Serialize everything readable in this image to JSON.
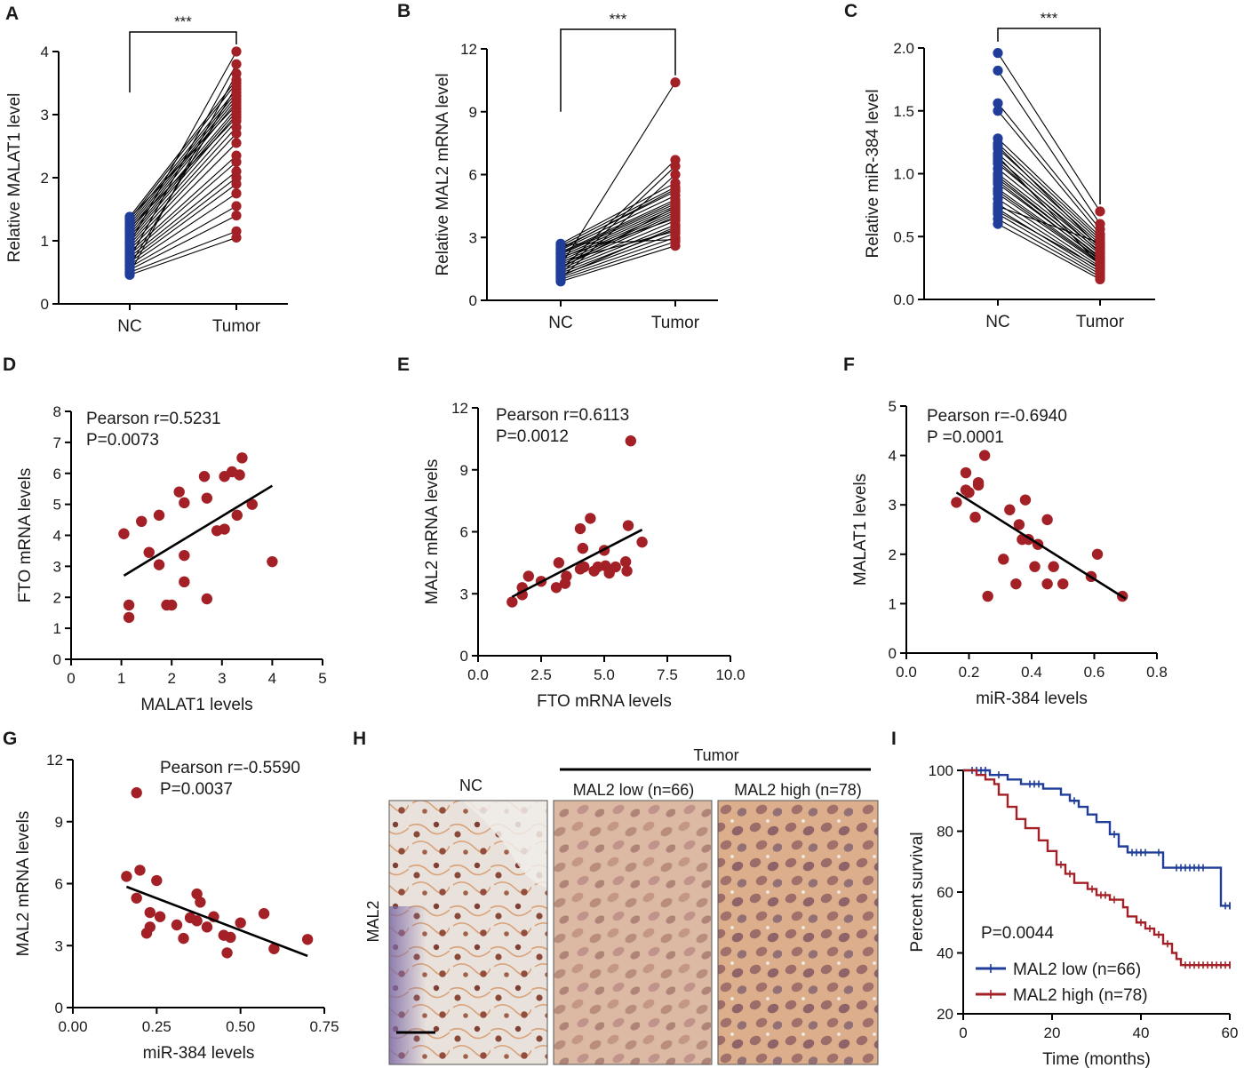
{
  "colors": {
    "blue": "#1f3d99",
    "red": "#a32126",
    "line": "#000000"
  },
  "histology": {
    "tumor_label": "Tumor",
    "nc_label": "NC",
    "low_label": "MAL2 low (n=66)",
    "high_label": "MAL2 high (n=78)",
    "row_label": "MAL2",
    "panel_letter": "H"
  },
  "chart_data": [
    {
      "id": "A",
      "type": "line",
      "panel_letter": "A",
      "categories": [
        "NC",
        "Tumor"
      ],
      "ylabel": "Relative MALAT1 level",
      "ylim": [
        0,
        4
      ],
      "yticks": [
        "0",
        "1",
        "2",
        "3",
        "4"
      ],
      "significance": "***",
      "nc": [
        0.46,
        0.5,
        0.54,
        0.58,
        0.62,
        0.66,
        0.7,
        0.74,
        0.78,
        0.82,
        0.86,
        0.9,
        0.94,
        0.98,
        1.02,
        1.06,
        1.1,
        1.14,
        1.18,
        1.22,
        1.26,
        1.3,
        1.34,
        1.38,
        0.48,
        0.72,
        0.96,
        1.2,
        1.36,
        0.6
      ],
      "tumor": [
        1.05,
        1.15,
        1.4,
        1.55,
        1.75,
        1.9,
        2.0,
        2.1,
        2.25,
        2.35,
        2.55,
        2.7,
        2.8,
        2.9,
        3.0,
        3.05,
        3.1,
        3.2,
        3.25,
        3.3,
        3.35,
        3.4,
        3.5,
        3.55,
        3.65,
        3.8,
        4.0,
        2.95,
        3.15,
        3.45
      ]
    },
    {
      "id": "B",
      "type": "line",
      "panel_letter": "B",
      "categories": [
        "NC",
        "Tumor"
      ],
      "ylabel": "Relative MAL2 mRNA level",
      "ylim": [
        0,
        12
      ],
      "yticks": [
        "0",
        "3",
        "6",
        "9",
        "12"
      ],
      "significance": "***",
      "nc": [
        0.9,
        1.0,
        1.1,
        1.2,
        1.3,
        1.4,
        1.5,
        1.6,
        1.7,
        1.8,
        1.9,
        2.0,
        2.1,
        2.2,
        2.3,
        2.4,
        2.5,
        2.6,
        2.7,
        1.05,
        1.25,
        1.45,
        1.65,
        1.85,
        2.05,
        2.25,
        2.45,
        2.65,
        1.15,
        1.55
      ],
      "tumor": [
        2.6,
        2.8,
        3.0,
        3.2,
        3.4,
        3.6,
        3.8,
        4.0,
        4.1,
        4.2,
        4.3,
        4.4,
        4.5,
        4.6,
        4.8,
        5.0,
        5.2,
        5.4,
        5.6,
        6.0,
        6.4,
        6.7,
        10.4,
        3.3,
        3.9,
        4.7,
        5.3,
        2.9,
        3.5,
        4.45
      ]
    },
    {
      "id": "C",
      "type": "line",
      "panel_letter": "C",
      "categories": [
        "NC",
        "Tumor"
      ],
      "ylabel": "Relative miR-384 level",
      "ylim": [
        0,
        2.0
      ],
      "yticks": [
        "0.0",
        "0.5",
        "1.0",
        "1.5",
        "2.0"
      ],
      "significance": "***",
      "nc": [
        0.6,
        0.64,
        0.68,
        0.72,
        0.76,
        0.8,
        0.84,
        0.88,
        0.92,
        0.96,
        1.0,
        1.04,
        1.08,
        1.12,
        1.16,
        1.2,
        1.24,
        1.28,
        1.5,
        1.56,
        1.82,
        1.96,
        0.7,
        0.86,
        0.98,
        1.1,
        1.22,
        0.74,
        0.94,
        1.14
      ],
      "tumor": [
        0.16,
        0.18,
        0.2,
        0.22,
        0.24,
        0.26,
        0.28,
        0.3,
        0.32,
        0.34,
        0.36,
        0.38,
        0.4,
        0.42,
        0.44,
        0.46,
        0.48,
        0.5,
        0.52,
        0.56,
        0.6,
        0.7,
        0.25,
        0.29,
        0.33,
        0.37,
        0.41,
        0.45,
        0.31,
        0.27
      ]
    },
    {
      "id": "D",
      "type": "scatter",
      "panel_letter": "D",
      "xlabel": "MALAT1 levels",
      "ylabel": "FTO mRNA levels",
      "xlim": [
        0,
        5
      ],
      "ylim": [
        0,
        8
      ],
      "xticks": [
        "0",
        "1",
        "2",
        "3",
        "4",
        "5"
      ],
      "yticks": [
        "0",
        "1",
        "2",
        "3",
        "4",
        "5",
        "6",
        "7",
        "8"
      ],
      "annotation": [
        "Pearson r=0.5231",
        "P=0.0073"
      ],
      "points": [
        [
          1.05,
          4.05
        ],
        [
          1.15,
          1.75
        ],
        [
          1.15,
          1.35
        ],
        [
          1.4,
          4.45
        ],
        [
          1.55,
          3.45
        ],
        [
          1.75,
          4.65
        ],
        [
          1.75,
          3.05
        ],
        [
          1.9,
          1.75
        ],
        [
          2.0,
          1.75
        ],
        [
          2.15,
          5.4
        ],
        [
          2.25,
          5.05
        ],
        [
          2.25,
          3.35
        ],
        [
          2.25,
          2.5
        ],
        [
          2.65,
          5.9
        ],
        [
          2.7,
          5.2
        ],
        [
          2.7,
          1.95
        ],
        [
          2.9,
          4.15
        ],
        [
          3.05,
          4.2
        ],
        [
          3.05,
          5.9
        ],
        [
          3.2,
          6.05
        ],
        [
          3.35,
          5.95
        ],
        [
          3.3,
          4.65
        ],
        [
          3.4,
          6.5
        ],
        [
          3.6,
          5.0
        ],
        [
          4.0,
          3.15
        ]
      ],
      "fit": [
        [
          1.05,
          2.7
        ],
        [
          4.0,
          5.6
        ]
      ]
    },
    {
      "id": "E",
      "type": "scatter",
      "panel_letter": "E",
      "xlabel": "FTO mRNA levels",
      "ylabel": "MAL2 mRNA levels",
      "xlim": [
        0,
        10
      ],
      "ylim": [
        0,
        12
      ],
      "xticks": [
        "0.0",
        "2.5",
        "5.0",
        "7.5",
        "10.0"
      ],
      "yticks": [
        "0",
        "3",
        "6",
        "9",
        "12"
      ],
      "annotation": [
        "Pearson r=0.6113",
        "P=0.0012"
      ],
      "points": [
        [
          1.35,
          2.6
        ],
        [
          1.75,
          2.95
        ],
        [
          1.75,
          3.3
        ],
        [
          2.0,
          3.85
        ],
        [
          2.5,
          3.6
        ],
        [
          3.1,
          3.3
        ],
        [
          3.2,
          4.5
        ],
        [
          3.45,
          3.5
        ],
        [
          3.5,
          3.85
        ],
        [
          4.05,
          4.2
        ],
        [
          4.05,
          6.15
        ],
        [
          4.15,
          5.2
        ],
        [
          4.2,
          4.3
        ],
        [
          4.45,
          6.65
        ],
        [
          4.6,
          4.1
        ],
        [
          4.75,
          4.3
        ],
        [
          5.0,
          5.1
        ],
        [
          5.05,
          4.35
        ],
        [
          5.2,
          4.0
        ],
        [
          5.45,
          4.3
        ],
        [
          5.85,
          4.55
        ],
        [
          5.9,
          4.1
        ],
        [
          5.95,
          6.3
        ],
        [
          6.05,
          10.4
        ],
        [
          6.5,
          5.5
        ]
      ],
      "fit": [
        [
          1.35,
          2.85
        ],
        [
          6.5,
          6.1
        ]
      ]
    },
    {
      "id": "F",
      "type": "scatter",
      "panel_letter": "F",
      "xlabel": "miR-384 levels",
      "ylabel": "MALAT1 levels",
      "xlim": [
        0,
        0.8
      ],
      "ylim": [
        0,
        5
      ],
      "xticks": [
        "0.0",
        "0.2",
        "0.4",
        "0.6",
        "0.8"
      ],
      "yticks": [
        "0",
        "1",
        "2",
        "3",
        "4",
        "5"
      ],
      "annotation": [
        "Pearson r=-0.6940",
        "P =0.0001"
      ],
      "points": [
        [
          0.16,
          3.05
        ],
        [
          0.19,
          3.3
        ],
        [
          0.19,
          3.65
        ],
        [
          0.2,
          3.25
        ],
        [
          0.22,
          2.75
        ],
        [
          0.23,
          3.45
        ],
        [
          0.23,
          3.4
        ],
        [
          0.25,
          4.0
        ],
        [
          0.26,
          1.15
        ],
        [
          0.31,
          1.9
        ],
        [
          0.33,
          2.9
        ],
        [
          0.35,
          1.4
        ],
        [
          0.36,
          2.6
        ],
        [
          0.37,
          2.3
        ],
        [
          0.38,
          3.1
        ],
        [
          0.39,
          2.3
        ],
        [
          0.41,
          1.75
        ],
        [
          0.42,
          2.2
        ],
        [
          0.45,
          2.7
        ],
        [
          0.45,
          1.4
        ],
        [
          0.47,
          1.75
        ],
        [
          0.5,
          1.4
        ],
        [
          0.59,
          1.55
        ],
        [
          0.61,
          2.0
        ],
        [
          0.69,
          1.15
        ]
      ],
      "fit": [
        [
          0.16,
          3.25
        ],
        [
          0.7,
          1.1
        ]
      ]
    },
    {
      "id": "G",
      "type": "scatter",
      "panel_letter": "G",
      "xlabel": "miR-384 levels",
      "ylabel": "MAL2 mRNA levels",
      "xlim": [
        0,
        0.75
      ],
      "ylim": [
        0,
        12
      ],
      "xticks": [
        "0.00",
        "0.25",
        "0.50",
        "0.75"
      ],
      "yticks": [
        "0",
        "3",
        "6",
        "9",
        "12"
      ],
      "annotation": [
        "Pearson r=-0.5590",
        "P=0.0037"
      ],
      "points": [
        [
          0.16,
          6.35
        ],
        [
          0.19,
          10.4
        ],
        [
          0.19,
          5.3
        ],
        [
          0.2,
          6.65
        ],
        [
          0.22,
          3.6
        ],
        [
          0.23,
          3.9
        ],
        [
          0.23,
          4.6
        ],
        [
          0.25,
          6.15
        ],
        [
          0.26,
          4.4
        ],
        [
          0.31,
          4.0
        ],
        [
          0.33,
          3.35
        ],
        [
          0.35,
          4.35
        ],
        [
          0.37,
          5.5
        ],
        [
          0.37,
          4.2
        ],
        [
          0.38,
          5.1
        ],
        [
          0.4,
          3.9
        ],
        [
          0.42,
          4.4
        ],
        [
          0.45,
          3.5
        ],
        [
          0.46,
          2.65
        ],
        [
          0.47,
          3.4
        ],
        [
          0.5,
          4.1
        ],
        [
          0.57,
          4.55
        ],
        [
          0.6,
          2.85
        ],
        [
          0.7,
          3.3
        ]
      ],
      "fit": [
        [
          0.16,
          5.85
        ],
        [
          0.7,
          2.5
        ]
      ]
    },
    {
      "id": "I",
      "type": "line",
      "panel_letter": "I",
      "xlabel": "Time (months)",
      "ylabel": "Percent survival",
      "xlim": [
        0,
        60
      ],
      "ylim": [
        20,
        100
      ],
      "xticks": [
        "0",
        "20",
        "40",
        "60"
      ],
      "yticks": [
        "20",
        "40",
        "60",
        "80",
        "100"
      ],
      "annotation": "P=0.0044",
      "series": [
        {
          "name": "MAL2 low (n=66)",
          "steps": [
            [
              0,
              100
            ],
            [
              6,
              98.5
            ],
            [
              10,
              97
            ],
            [
              13,
              95.5
            ],
            [
              18,
              94
            ],
            [
              22,
              92
            ],
            [
              24,
              90
            ],
            [
              26,
              88
            ],
            [
              28,
              85.5
            ],
            [
              30,
              83
            ],
            [
              33,
              79
            ],
            [
              35,
              75
            ],
            [
              37,
              73
            ],
            [
              42,
              73
            ],
            [
              45,
              68
            ],
            [
              55,
              68
            ],
            [
              58,
              55.5
            ],
            [
              61,
              55.5
            ]
          ],
          "censor": [
            2,
            3,
            4,
            5,
            8,
            15,
            16,
            17,
            25,
            34,
            38,
            39,
            40,
            41,
            44,
            48,
            49,
            50,
            51,
            52,
            53,
            54,
            59,
            60,
            61
          ]
        },
        {
          "name": "MAL2 high (n=78)",
          "steps": [
            [
              0,
              100
            ],
            [
              3,
              98.5
            ],
            [
              5,
              97
            ],
            [
              7,
              95.5
            ],
            [
              8,
              92
            ],
            [
              10,
              88
            ],
            [
              12,
              84
            ],
            [
              14,
              81
            ],
            [
              17,
              77
            ],
            [
              19,
              73.5
            ],
            [
              21,
              69
            ],
            [
              23,
              66
            ],
            [
              25,
              63
            ],
            [
              28,
              61
            ],
            [
              30,
              59
            ],
            [
              33,
              57.5
            ],
            [
              36,
              55
            ],
            [
              37,
              52
            ],
            [
              39,
              50
            ],
            [
              41,
              48
            ],
            [
              43,
              46
            ],
            [
              45,
              43
            ],
            [
              47,
              40
            ],
            [
              48,
              38
            ],
            [
              49,
              36
            ],
            [
              61,
              36
            ]
          ],
          "censor": [
            22,
            24,
            29,
            31,
            32,
            34,
            40,
            42,
            44,
            46,
            50,
            51,
            52,
            53,
            54,
            55,
            56,
            57,
            58,
            59,
            60,
            61
          ]
        }
      ]
    }
  ]
}
